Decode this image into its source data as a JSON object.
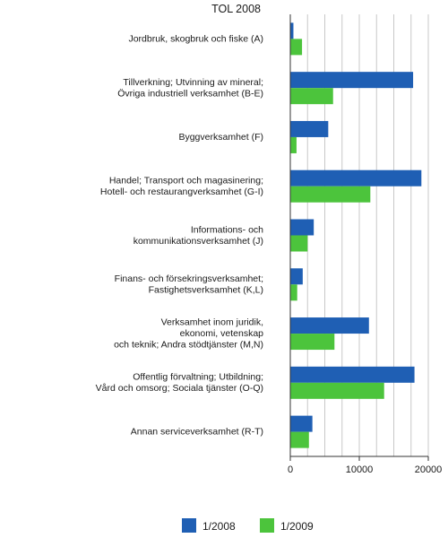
{
  "chart_data": {
    "type": "bar",
    "orientation": "horizontal",
    "header": "TOL 2008",
    "title": "",
    "xlabel": "",
    "ylabel": "",
    "xlim": [
      0,
      20000
    ],
    "xticks": [
      0,
      10000,
      20000
    ],
    "grid": true,
    "legend_position": "bottom",
    "categories": [
      [
        "Jordbruk, skogbruk och fiske (A)"
      ],
      [
        "Tillverkning; Utvinning av mineral;",
        "Övriga industriell verksamhet (B-E)"
      ],
      [
        "Byggverksamhet (F)"
      ],
      [
        "Handel; Transport och magasinering;",
        "Hotell- och restaurangverksamhet (G-I)"
      ],
      [
        "Informations- och",
        "kommunikationsverksamhet (J)"
      ],
      [
        "Finans- och försekringsverksamhet;",
        "Fastighetsverksamhet (K,L)"
      ],
      [
        "Verksamhet inom juridik,",
        "ekonomi, vetenskap",
        "och teknik; Andra stödtjänster (M,N)"
      ],
      [
        "Offentlig förvaltning; Utbildning;",
        "Vård och omsorg; Sociala tjänster (O-Q)"
      ],
      [
        "Annan serviceverksamhet (R-T)"
      ]
    ],
    "series": [
      {
        "name": "1/2008",
        "color": "#1f5fb4",
        "values": [
          450,
          17800,
          5500,
          19000,
          3400,
          1800,
          11400,
          18000,
          3200
        ]
      },
      {
        "name": "1/2009",
        "color": "#4cc43c",
        "values": [
          1700,
          6200,
          900,
          11600,
          2500,
          1000,
          6400,
          13600,
          2700
        ]
      }
    ]
  }
}
